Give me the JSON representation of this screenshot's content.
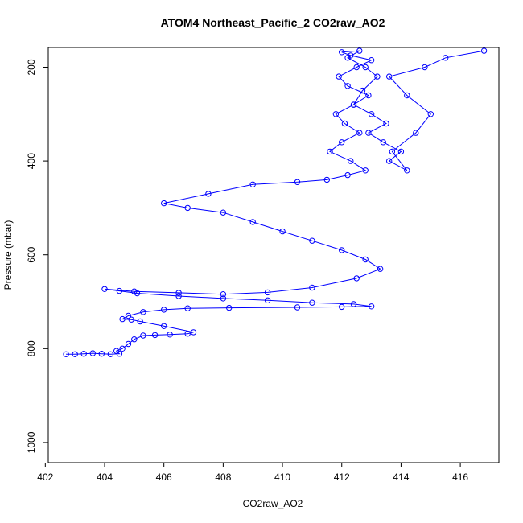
{
  "chart_data": {
    "type": "line",
    "title": "ATOM4 Northeast_Pacific_2 CO2raw_AO2",
    "xlabel": "CO2raw_AO2",
    "ylabel": "Pressure (mbar)",
    "xlim": [
      402.1,
      417.3
    ],
    "ylim": [
      1043,
      158
    ],
    "y_reversed": true,
    "x_ticks": [
      402,
      404,
      406,
      408,
      410,
      412,
      414,
      416
    ],
    "y_ticks": [
      200,
      400,
      600,
      800,
      1000
    ],
    "marker": "open-circle",
    "line_style": "solid",
    "grid": false,
    "series": [
      {
        "color": "#0000ff",
        "x": [
          402.7,
          403.0,
          403.3,
          403.6,
          403.9,
          404.2,
          404.5,
          404.4,
          404.6,
          404.8,
          405.0,
          405.3,
          405.7,
          406.2,
          406.8,
          407.0,
          406.0,
          405.2,
          404.9,
          404.6,
          404.8,
          405.3,
          406.0,
          406.8,
          408.2,
          410.5,
          412.0,
          413.0,
          412.4,
          411.0,
          409.5,
          408.0,
          406.5,
          405.1,
          404.5,
          404.0,
          405.0,
          406.5,
          408.0,
          409.5,
          411.0,
          412.5,
          413.3,
          412.8,
          412.0,
          411.0,
          410.0,
          409.0,
          408.0,
          406.8,
          406.0,
          407.5,
          409.0,
          410.5,
          411.5,
          412.2,
          412.8,
          412.3,
          411.6,
          412.0,
          412.6,
          412.1,
          411.8,
          412.4,
          412.9,
          412.2,
          411.9,
          412.5,
          413.0,
          412.3,
          412.0,
          412.6,
          412.2,
          412.8,
          413.2,
          412.7,
          412.4,
          413.0,
          413.5,
          412.9,
          413.4,
          414.0,
          413.6,
          414.2,
          413.7,
          414.5,
          415.0,
          414.2,
          413.6,
          414.8,
          415.5,
          416.8
        ],
        "y": [
          812,
          812,
          811,
          810,
          811,
          812,
          811,
          805,
          800,
          790,
          780,
          772,
          771,
          770,
          768,
          765,
          752,
          742,
          738,
          737,
          730,
          722,
          717,
          714,
          713,
          712,
          711,
          710,
          705,
          702,
          697,
          693,
          688,
          682,
          677,
          673,
          678,
          681,
          684,
          680,
          670,
          650,
          630,
          610,
          590,
          570,
          550,
          530,
          510,
          500,
          490,
          470,
          450,
          445,
          440,
          430,
          420,
          400,
          380,
          360,
          340,
          320,
          300,
          280,
          260,
          240,
          220,
          200,
          185,
          175,
          168,
          165,
          180,
          200,
          220,
          250,
          280,
          300,
          320,
          340,
          360,
          380,
          400,
          420,
          380,
          340,
          300,
          260,
          220,
          200,
          180,
          165
        ]
      }
    ]
  }
}
